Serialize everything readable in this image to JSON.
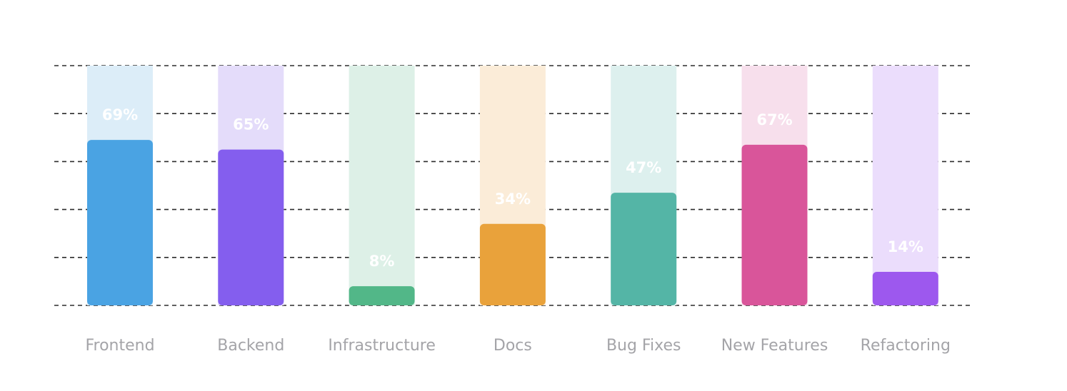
{
  "chart_data": {
    "type": "bar",
    "title": "",
    "xlabel": "",
    "ylabel": "",
    "ylim": [
      0,
      100
    ],
    "grid": true,
    "grid_style": "dashed",
    "value_suffix": "%",
    "categories": [
      "Frontend",
      "Backend",
      "Infrastructure",
      "Docs",
      "Bug Fixes",
      "New Features",
      "Refactoring"
    ],
    "values": [
      69,
      65,
      8,
      34,
      47,
      67,
      14
    ],
    "colors": [
      "#4AA3E3",
      "#845EEE",
      "#52B788",
      "#E9A23B",
      "#54B5A6",
      "#D9559A",
      "#9D58EE"
    ],
    "track_colors": [
      "#DCEDF8",
      "#E4DCFA",
      "#DDF0E7",
      "#FBECD8",
      "#DDF0EE",
      "#F7DFEC",
      "#EBDDFC"
    ],
    "label_text_color": "#FFFFFF",
    "category_label_color": "#A4A4A8",
    "grid_color": "#2B2B2B"
  }
}
